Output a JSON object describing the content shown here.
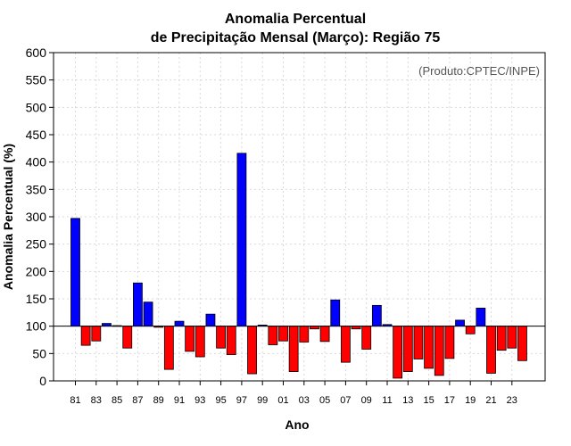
{
  "chart_data": {
    "type": "bar",
    "title_line1": "Anomalia Percentual",
    "title_line2": "de Precipitação Mensal (Março): Região 75",
    "xlabel": "Ano",
    "ylabel": "Anomalia Percentual (%)",
    "credit": "(Produto:CPTEC/INPE)",
    "ylim": [
      0,
      600
    ],
    "yticks": [
      0,
      50,
      100,
      150,
      200,
      250,
      300,
      350,
      400,
      450,
      500,
      550,
      600
    ],
    "baseline": 100,
    "grid": true,
    "colors": {
      "above": "#0000ff",
      "below": "#ff0000",
      "edge": "#000000"
    },
    "categories": [
      "81",
      "82",
      "83",
      "84",
      "85",
      "86",
      "87",
      "88",
      "89",
      "90",
      "91",
      "92",
      "93",
      "94",
      "95",
      "96",
      "97",
      "98",
      "99",
      "00",
      "01",
      "02",
      "03",
      "04",
      "05",
      "06",
      "07",
      "08",
      "09",
      "10",
      "11",
      "12",
      "13",
      "14",
      "15",
      "16",
      "17",
      "18",
      "19",
      "20",
      "21",
      "22",
      "23",
      "24"
    ],
    "xtick_labels": [
      "81",
      "83",
      "85",
      "87",
      "89",
      "91",
      "93",
      "95",
      "97",
      "99",
      "01",
      "03",
      "05",
      "07",
      "09",
      "11",
      "13",
      "15",
      "17",
      "19",
      "21",
      "23"
    ],
    "values": [
      297,
      65,
      73,
      105,
      101,
      60,
      179,
      144,
      98,
      21,
      109,
      54,
      44,
      122,
      60,
      48,
      416,
      13,
      102,
      66,
      73,
      17,
      71,
      95,
      72,
      148,
      34,
      95,
      58,
      138,
      103,
      5,
      17,
      40,
      23,
      10,
      41,
      111,
      86,
      133,
      14,
      56,
      60,
      37
    ]
  }
}
